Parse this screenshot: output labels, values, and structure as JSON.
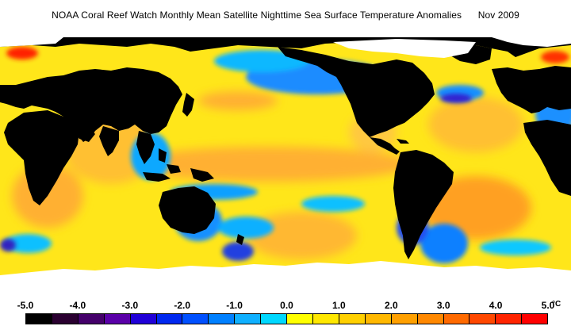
{
  "title": "NOAA Coral Reef Watch Monthly Mean Satellite Nighttime Sea Surface Temperature Anomalies      Nov 2009",
  "legend": {
    "ticks": [
      "-5.0",
      "-4.0",
      "-3.0",
      "-2.0",
      "-1.0",
      "0.0",
      "1.0",
      "2.0",
      "3.0",
      "4.0",
      "5.0"
    ],
    "unit": "°C",
    "colors": [
      "#000000",
      "#2a0030",
      "#44006a",
      "#5a00a8",
      "#2000d8",
      "#0028f0",
      "#0050ff",
      "#0080ff",
      "#10b0ff",
      "#00d8ff",
      "#ffff00",
      "#ffe800",
      "#ffd000",
      "#ffb800",
      "#ffa000",
      "#ff8800",
      "#ff6a00",
      "#ff4800",
      "#ff2400",
      "#ff0000"
    ]
  },
  "colors": {
    "ocean_warm": "#ffd400",
    "ocean_base": "#ffe61a",
    "anomaly_orange": "#ffa020",
    "anomaly_cool": "#1e90ff",
    "anomaly_cyan": "#10c8ff",
    "anomaly_deep": "#2030e0",
    "land": "#000000",
    "ice": "#ffffff"
  }
}
